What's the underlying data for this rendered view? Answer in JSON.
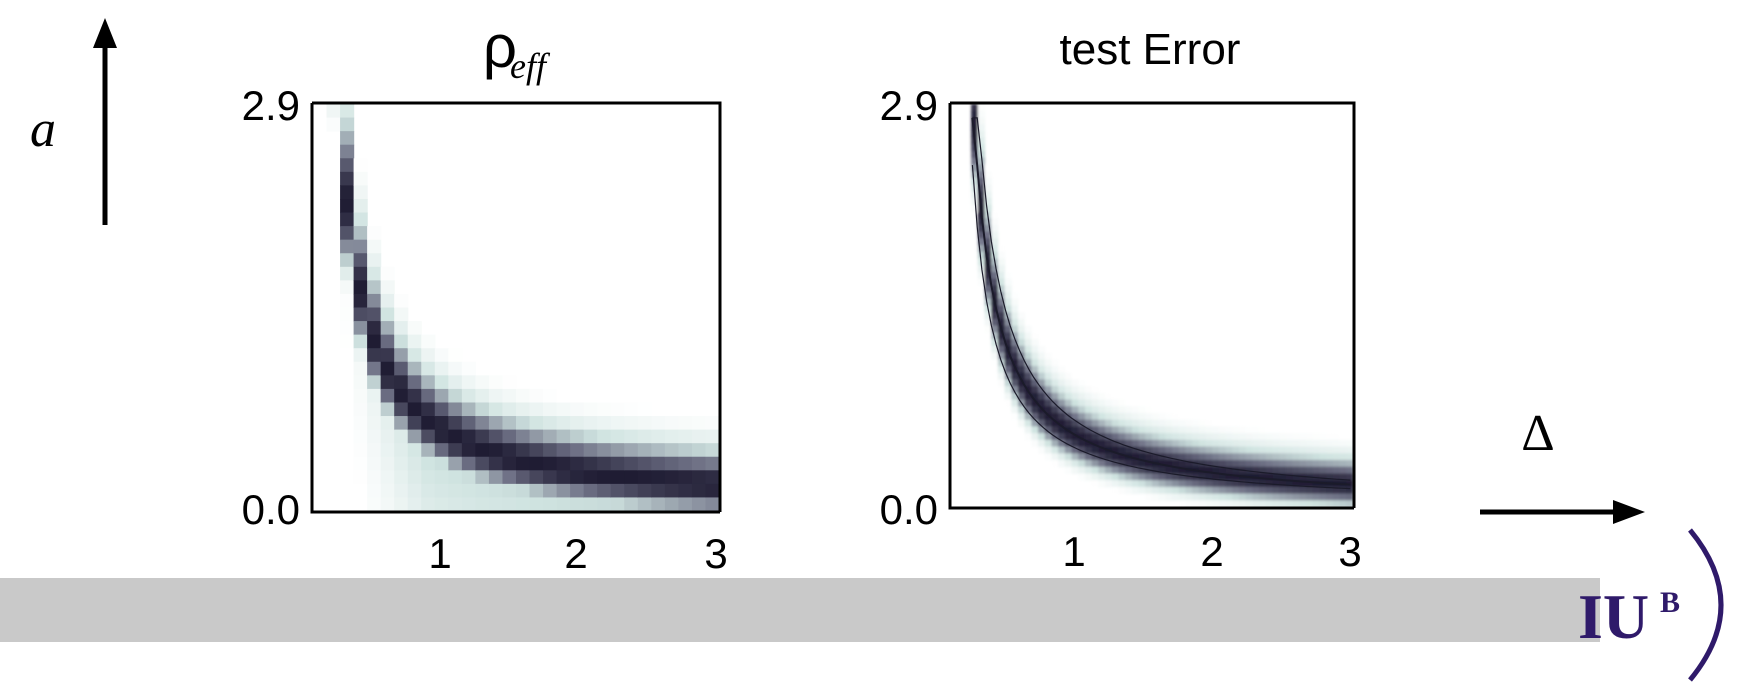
{
  "labels": {
    "vertical_axis": "a",
    "horizontal_axis": "Δ"
  },
  "logo": {
    "text": "IU",
    "superscript": "B"
  },
  "colors": {
    "heat_dark": "#1f1c33",
    "heat_mid": "#6d6f84",
    "heat_light": "#cfe3e0",
    "contour_fill": "#6f7286",
    "footer_band": "#c9c9c9",
    "logo": "#2f1a6a"
  },
  "chart_data": [
    {
      "type": "heatmap",
      "title_main": "ρ",
      "title_sub": "eff",
      "xlim": [
        0,
        3
      ],
      "ylim": [
        0.0,
        2.9
      ],
      "xticks": [
        "1",
        "2",
        "3"
      ],
      "yticks": [
        "2.9",
        "0.0"
      ],
      "ridge": {
        "form": "y = k / x",
        "k": 0.55
      },
      "grid": false
    },
    {
      "type": "heatmap",
      "title": "test Error",
      "xlim": [
        0,
        3
      ],
      "ylim": [
        0.0,
        2.9
      ],
      "xticks": [
        "1",
        "2",
        "3"
      ],
      "yticks": [
        "2.9",
        "0.0"
      ],
      "ridge": {
        "form": "y = k / x",
        "k": 0.48
      },
      "contours": true,
      "grid": false
    }
  ]
}
